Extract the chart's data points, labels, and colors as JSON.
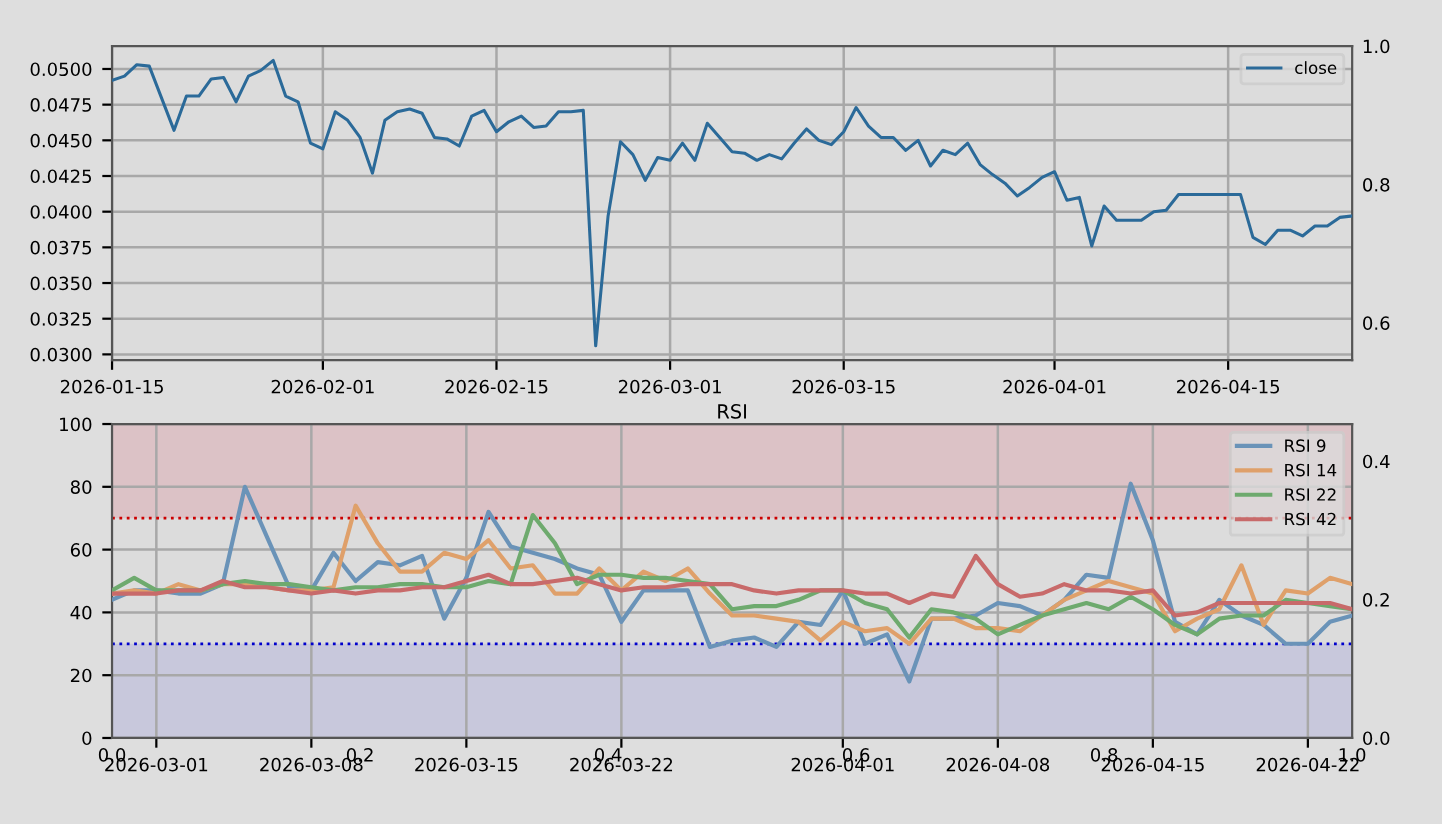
{
  "chart_data": [
    {
      "type": "line",
      "x": [
        "2026-01-15",
        "2026-01-16",
        "2026-01-17",
        "2026-01-18",
        "2026-01-20",
        "2026-01-21",
        "2026-01-22",
        "2026-01-23",
        "2026-01-24",
        "2026-01-25",
        "2026-01-26",
        "2026-01-27",
        "2026-01-28",
        "2026-01-29",
        "2026-01-30",
        "2026-01-31",
        "2026-02-01",
        "2026-02-02",
        "2026-02-03",
        "2026-02-04",
        "2026-02-05",
        "2026-02-06",
        "2026-02-07",
        "2026-02-08",
        "2026-02-09",
        "2026-02-10",
        "2026-02-11",
        "2026-02-12",
        "2026-02-13",
        "2026-02-14",
        "2026-02-15",
        "2026-02-16",
        "2026-02-17",
        "2026-02-18",
        "2026-02-19",
        "2026-02-20",
        "2026-02-21",
        "2026-02-22",
        "2026-02-23",
        "2026-02-24",
        "2026-02-25",
        "2026-02-26",
        "2026-02-27",
        "2026-02-28",
        "2026-03-01",
        "2026-03-02",
        "2026-03-03",
        "2026-03-04",
        "2026-03-05",
        "2026-03-06",
        "2026-03-07",
        "2026-03-08",
        "2026-03-09",
        "2026-03-10",
        "2026-03-11",
        "2026-03-12",
        "2026-03-13",
        "2026-03-14",
        "2026-03-15",
        "2026-03-16",
        "2026-03-17",
        "2026-03-18",
        "2026-03-19",
        "2026-03-20",
        "2026-03-21",
        "2026-03-22",
        "2026-03-23",
        "2026-03-24",
        "2026-03-25",
        "2026-03-26",
        "2026-03-27",
        "2026-03-28",
        "2026-03-29",
        "2026-03-30",
        "2026-03-31",
        "2026-04-01",
        "2026-04-02",
        "2026-04-03",
        "2026-04-04",
        "2026-04-05",
        "2026-04-06",
        "2026-04-07",
        "2026-04-08",
        "2026-04-09",
        "2026-04-10",
        "2026-04-11",
        "2026-04-12",
        "2026-04-13",
        "2026-04-14",
        "2026-04-15",
        "2026-04-16",
        "2026-04-17",
        "2026-04-18",
        "2026-04-19",
        "2026-04-20",
        "2026-04-21",
        "2026-04-22",
        "2026-04-23",
        "2026-04-24",
        "2026-04-25"
      ],
      "series": [
        {
          "name": "close",
          "color": "#2b6a99",
          "values": [
            0.0492,
            0.0495,
            0.0503,
            0.0502,
            0.0457,
            0.0481,
            0.0481,
            0.0493,
            0.0494,
            0.0477,
            0.0495,
            0.0499,
            0.0506,
            0.0481,
            0.0477,
            0.0448,
            0.0444,
            0.047,
            0.0464,
            0.0452,
            0.0427,
            0.0464,
            0.047,
            0.0472,
            0.0469,
            0.0452,
            0.0451,
            0.0446,
            0.0467,
            0.0471,
            0.0456,
            0.0463,
            0.0467,
            0.0459,
            0.046,
            0.047,
            0.047,
            0.0471,
            0.0306,
            0.0397,
            0.0449,
            0.044,
            0.0422,
            0.0438,
            0.0436,
            0.0448,
            0.0436,
            0.0462,
            0.0452,
            0.0442,
            0.0441,
            0.0436,
            0.044,
            0.0437,
            0.0448,
            0.0458,
            0.045,
            0.0447,
            0.0456,
            0.0473,
            0.046,
            0.0452,
            0.0452,
            0.0443,
            0.045,
            0.0432,
            0.0443,
            0.044,
            0.0448,
            0.0433,
            0.0426,
            0.042,
            0.0411,
            0.0417,
            0.0424,
            0.0428,
            0.0408,
            0.041,
            0.0376,
            0.0404,
            0.0394,
            0.0394,
            0.0394,
            0.04,
            0.0401,
            0.0412,
            0.0412,
            0.0412,
            0.0412,
            0.0412,
            0.0412,
            0.0382,
            0.0377,
            0.0387,
            0.0387,
            0.0383,
            0.039,
            0.039,
            0.0396,
            0.0397
          ]
        }
      ],
      "xlim": [
        "2026-01-15",
        "2026-04-25"
      ],
      "xticks": [
        "2026-01-15",
        "2026-02-01",
        "2026-02-15",
        "2026-03-01",
        "2026-03-15",
        "2026-04-01",
        "2026-04-15"
      ],
      "ylim": [
        0.0296,
        0.0516
      ],
      "yticks": [
        {
          "value": 0.03,
          "label": "0.0300"
        },
        {
          "value": 0.0325,
          "label": "0.0325"
        },
        {
          "value": 0.035,
          "label": "0.0350"
        },
        {
          "value": 0.0375,
          "label": "0.0375"
        },
        {
          "value": 0.04,
          "label": "0.0400"
        },
        {
          "value": 0.0425,
          "label": "0.0425"
        },
        {
          "value": 0.045,
          "label": "0.0450"
        },
        {
          "value": 0.0475,
          "label": "0.0475"
        },
        {
          "value": 0.05,
          "label": "0.0500"
        }
      ],
      "grid": true,
      "legend": "top right"
    },
    {
      "type": "line",
      "title": "RSI",
      "x": [
        "2026-02-27",
        "2026-02-28",
        "2026-03-01",
        "2026-03-02",
        "2026-03-03",
        "2026-03-04",
        "2026-03-05",
        "2026-03-06",
        "2026-03-07",
        "2026-03-08",
        "2026-03-09",
        "2026-03-10",
        "2026-03-11",
        "2026-03-12",
        "2026-03-13",
        "2026-03-14",
        "2026-03-15",
        "2026-03-16",
        "2026-03-17",
        "2026-03-18",
        "2026-03-19",
        "2026-03-20",
        "2026-03-21",
        "2026-03-22",
        "2026-03-23",
        "2026-03-24",
        "2026-03-25",
        "2026-03-26",
        "2026-03-27",
        "2026-03-28",
        "2026-03-29",
        "2026-03-30",
        "2026-03-31",
        "2026-04-01",
        "2026-04-02",
        "2026-04-03",
        "2026-04-04",
        "2026-04-05",
        "2026-04-06",
        "2026-04-07",
        "2026-04-08",
        "2026-04-09",
        "2026-04-10",
        "2026-04-11",
        "2026-04-12",
        "2026-04-13",
        "2026-04-14",
        "2026-04-15",
        "2026-04-16",
        "2026-04-17",
        "2026-04-18",
        "2026-04-19",
        "2026-04-20",
        "2026-04-21",
        "2026-04-22",
        "2026-04-23",
        "2026-04-24"
      ],
      "series": [
        {
          "name": "RSI 9",
          "color": "#6a93b8",
          "values": [
            44,
            47,
            47,
            46,
            46,
            49,
            80,
            64,
            48,
            47,
            59,
            50,
            56,
            55,
            58,
            38,
            51,
            72,
            61,
            59,
            57,
            54,
            52,
            37,
            47,
            47,
            47,
            29,
            31,
            32,
            29,
            37,
            36,
            47,
            30,
            33,
            18,
            38,
            38,
            39,
            43,
            42,
            39,
            44,
            52,
            51,
            81,
            63,
            37,
            33,
            44,
            39,
            36,
            30,
            30,
            37,
            39
          ]
        },
        {
          "name": "RSI 14",
          "color": "#dfa06a",
          "values": [
            46,
            47,
            46,
            49,
            47,
            49,
            49,
            48,
            47,
            47,
            48,
            74,
            62,
            53,
            53,
            59,
            57,
            63,
            54,
            55,
            46,
            46,
            54,
            47,
            53,
            50,
            54,
            46,
            39,
            39,
            38,
            37,
            31,
            37,
            34,
            35,
            30,
            38,
            38,
            35,
            35,
            34,
            39,
            44,
            47,
            50,
            48,
            46,
            34,
            38,
            41,
            55,
            36,
            47,
            46,
            51,
            49
          ]
        },
        {
          "name": "RSI 22",
          "color": "#6eaa6e",
          "values": [
            47,
            51,
            47,
            47,
            47,
            49,
            50,
            49,
            49,
            48,
            47,
            48,
            48,
            49,
            49,
            48,
            48,
            50,
            49,
            71,
            62,
            49,
            52,
            52,
            51,
            51,
            50,
            49,
            41,
            42,
            42,
            44,
            47,
            47,
            43,
            41,
            32,
            41,
            40,
            38,
            33,
            36,
            39,
            41,
            43,
            41,
            45,
            41,
            36,
            33,
            38,
            39,
            39,
            44,
            43,
            42,
            41
          ]
        },
        {
          "name": "RSI 42",
          "color": "#c86a6a",
          "values": [
            46,
            46,
            46,
            47,
            47,
            50,
            48,
            48,
            47,
            46,
            47,
            46,
            47,
            47,
            48,
            48,
            50,
            52,
            49,
            49,
            50,
            51,
            49,
            47,
            48,
            48,
            49,
            49,
            49,
            47,
            46,
            47,
            47,
            47,
            46,
            46,
            43,
            46,
            45,
            58,
            49,
            45,
            46,
            49,
            47,
            47,
            46,
            47,
            39,
            40,
            43,
            43,
            43,
            43,
            43,
            43,
            41
          ]
        }
      ],
      "xlim": [
        "2026-02-27",
        "2026-04-24"
      ],
      "xticks": [
        "2026-03-01",
        "2026-03-08",
        "2026-03-15",
        "2026-03-22",
        "2026-04-01",
        "2026-04-08",
        "2026-04-15",
        "2026-04-22"
      ],
      "ylim": [
        0,
        100
      ],
      "yticks": [
        0,
        20,
        40,
        60,
        80,
        100
      ],
      "bands": [
        {
          "axis": "y",
          "from": 70,
          "to": 100,
          "color": "#dcc2c6"
        },
        {
          "axis": "y",
          "from": 0,
          "to": 30,
          "color": "#c8c8dc"
        }
      ],
      "ref_lines": [
        {
          "axis": "y",
          "value": 70,
          "color": "#cc0000",
          "line_style": "dotted"
        },
        {
          "axis": "y",
          "value": 30,
          "color": "#0000cc",
          "line_style": "dotted"
        }
      ],
      "grid": true,
      "legend": "top right"
    },
    {
      "type": "line",
      "xlim": [
        0,
        1
      ],
      "ylim": [
        0,
        1
      ],
      "xticks": [
        {
          "value": 0,
          "label": "0.0"
        },
        {
          "value": 0.2,
          "label": "0.2"
        },
        {
          "value": 0.4,
          "label": "0.4"
        },
        {
          "value": 0.6,
          "label": "0.6"
        },
        {
          "value": 0.8,
          "label": "0.8"
        },
        {
          "value": 1,
          "label": "1.0"
        }
      ],
      "yticks": [
        {
          "value": 0,
          "label": "0.0"
        },
        {
          "value": 0.2,
          "label": "0.2"
        },
        {
          "value": 0.4,
          "label": "0.4"
        },
        {
          "value": 0.6,
          "label": "0.6"
        },
        {
          "value": 0.8,
          "label": "0.8"
        },
        {
          "value": 1,
          "label": "1.0"
        }
      ]
    }
  ]
}
